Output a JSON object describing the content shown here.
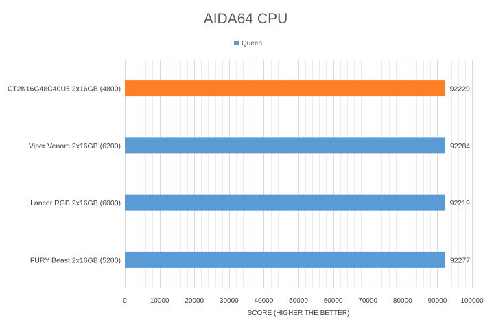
{
  "chart_data": {
    "type": "bar",
    "orientation": "horizontal",
    "title": "AIDA64 CPU",
    "xlabel": "SCORE (HIGHER THE BETTER)",
    "ylabel": "",
    "xlim": [
      0,
      100000
    ],
    "x_ticks": [
      0,
      10000,
      20000,
      30000,
      40000,
      50000,
      60000,
      70000,
      80000,
      90000,
      100000
    ],
    "grid": true,
    "legend_position": "top",
    "series": [
      {
        "name": "Queen",
        "color": "#5b9bd5"
      }
    ],
    "categories": [
      "CT2K16G48C40U5 2x16GB (4800)",
      "Viper Venom 2x16GB (6200)",
      "Lancer RGB 2x16GB (6000)",
      "FURY Beast 2x16GB (5200)"
    ],
    "values": [
      92229,
      92284,
      92219,
      92277
    ],
    "bar_colors": [
      "#ff7f27",
      "#5b9bd5",
      "#5b9bd5",
      "#5b9bd5"
    ],
    "data_labels": [
      "92229",
      "92284",
      "92219",
      "92277"
    ]
  }
}
